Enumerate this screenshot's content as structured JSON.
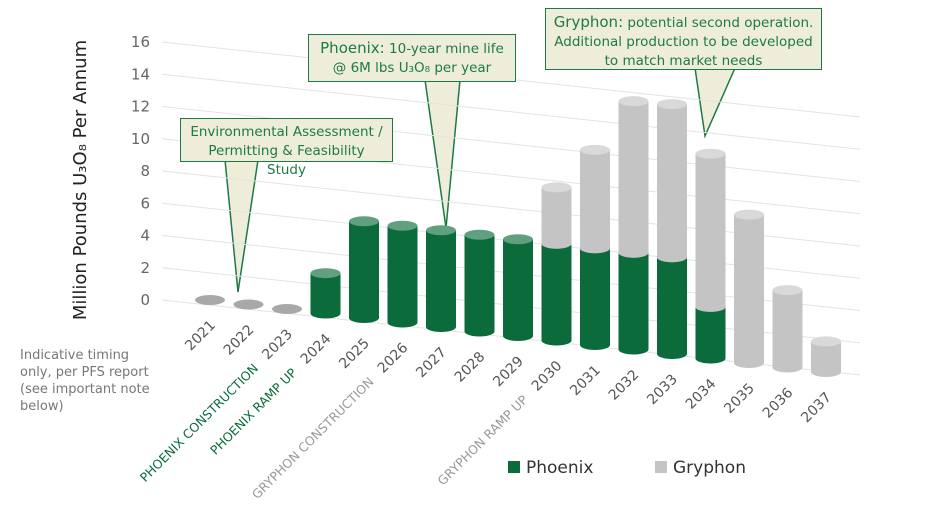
{
  "chart_data": {
    "type": "bar",
    "stacked": true,
    "y_label": "Million Pounds U₃O₈ Per Annum",
    "categories": [
      "2021",
      "2022",
      "2023",
      "2024",
      "2025",
      "2026",
      "2027",
      "2028",
      "2029",
      "2030",
      "2031",
      "2032",
      "2033",
      "2034",
      "2035",
      "2036",
      "2037"
    ],
    "series": [
      {
        "name": "Phoenix",
        "color": "#0b6b3a",
        "values": [
          0,
          0,
          0,
          2.5,
          6,
          6,
          6,
          6,
          6,
          6,
          6,
          6,
          6,
          3.2,
          0,
          0,
          0
        ]
      },
      {
        "name": "Gryphon",
        "color": "#c4c4c4",
        "values": [
          0,
          0,
          0,
          0,
          0,
          0,
          0,
          0,
          0,
          3.5,
          6.1,
          9.4,
          9.5,
          9.5,
          9.2,
          4.8,
          1.9
        ]
      }
    ],
    "ylim": [
      0,
      16
    ],
    "yticks": [
      0,
      2,
      4,
      6,
      8,
      10,
      12,
      14,
      16
    ],
    "grid": true,
    "phase_labels": [
      {
        "text": "PHOENIX CONSTRUCTION",
        "category": 2,
        "color": "#0b6b3a"
      },
      {
        "text": "PHOENIX RAMP UP",
        "category": 3,
        "color": "#0b6b3a"
      },
      {
        "text": "GRYPHON CONSTRUCTION",
        "category": 5,
        "color": "#999999"
      },
      {
        "text": "GRYPHON RAMP UP",
        "category": 9,
        "color": "#999999"
      }
    ],
    "annotations": [
      {
        "text": "Environmental Assessment / Permitting & Feasibility Study"
      },
      {
        "bold": "Phoenix:",
        "text": "10-year mine life @ 6M lbs U₃O₈ per year"
      },
      {
        "bold": "Gryphon:",
        "text": "potential second operation. Additional production to be developed to match market needs"
      }
    ],
    "note": "Indicative timing only, per PFS report (see important note below)"
  }
}
